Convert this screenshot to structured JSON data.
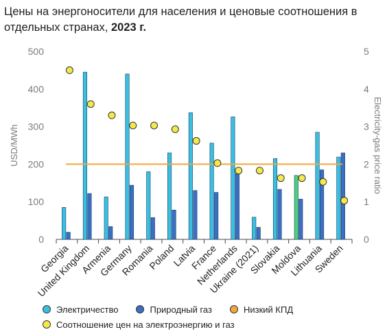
{
  "title": {
    "text": "Цены на энергоносители для населения и ценовые соотношения в отдельных странах,",
    "year": "2023 г."
  },
  "legend": [
    {
      "label": "Электричество",
      "color": "#3bbfe0"
    },
    {
      "label": "Природный газ",
      "color": "#3a6fc4"
    },
    {
      "label": "Низкий КПД",
      "color": "#f2a73b"
    },
    {
      "label": "Соотношение цен на электроэнергию и газ",
      "color": "#f4e84a"
    }
  ],
  "chart_data": {
    "type": "bar",
    "categories": [
      "Georgia",
      "United Kingdom",
      "Armenia",
      "Germany",
      "Romania",
      "Poland",
      "Latvia",
      "France",
      "Netherlands",
      "Ukraine (2021)",
      "Slovakia",
      "Moldova",
      "Lithuania",
      "Sweden"
    ],
    "series": [
      {
        "name": "Электричество",
        "axis": "left",
        "color": "#3bbfe0",
        "highlight_color": "#4ed07a",
        "highlight_category": "Moldova",
        "values": [
          85,
          445,
          113,
          440,
          180,
          230,
          337,
          256,
          326,
          59,
          215,
          170,
          285,
          219
        ]
      },
      {
        "name": "Природный газ",
        "axis": "left",
        "color": "#3a6fc4",
        "values": [
          19,
          122,
          34,
          144,
          58,
          78,
          130,
          125,
          175,
          32,
          133,
          107,
          185,
          230
        ]
      },
      {
        "name": "Соотношение цен на электроэнергию и газ",
        "axis": "right",
        "type": "scatter",
        "color": "#f4e84a",
        "values": [
          4.5,
          3.6,
          3.3,
          3.03,
          3.03,
          2.93,
          2.62,
          2.03,
          1.83,
          1.83,
          1.63,
          1.63,
          1.53,
          1.03
        ]
      },
      {
        "name": "Низкий КПД",
        "axis": "right",
        "type": "hline",
        "color": "#f2a73b",
        "value": 2
      }
    ],
    "y_left": {
      "label": "USD/MWh",
      "ticks": [
        "0",
        "100",
        "200",
        "300",
        "400",
        "500"
      ],
      "range": [
        0,
        500
      ]
    },
    "y_right": {
      "label": "Electricity-gas price ratio",
      "ticks": [
        "0",
        "1",
        "2",
        "3",
        "4",
        "5"
      ],
      "range": [
        0,
        5
      ]
    },
    "grid": false,
    "legend_position": "bottom"
  }
}
